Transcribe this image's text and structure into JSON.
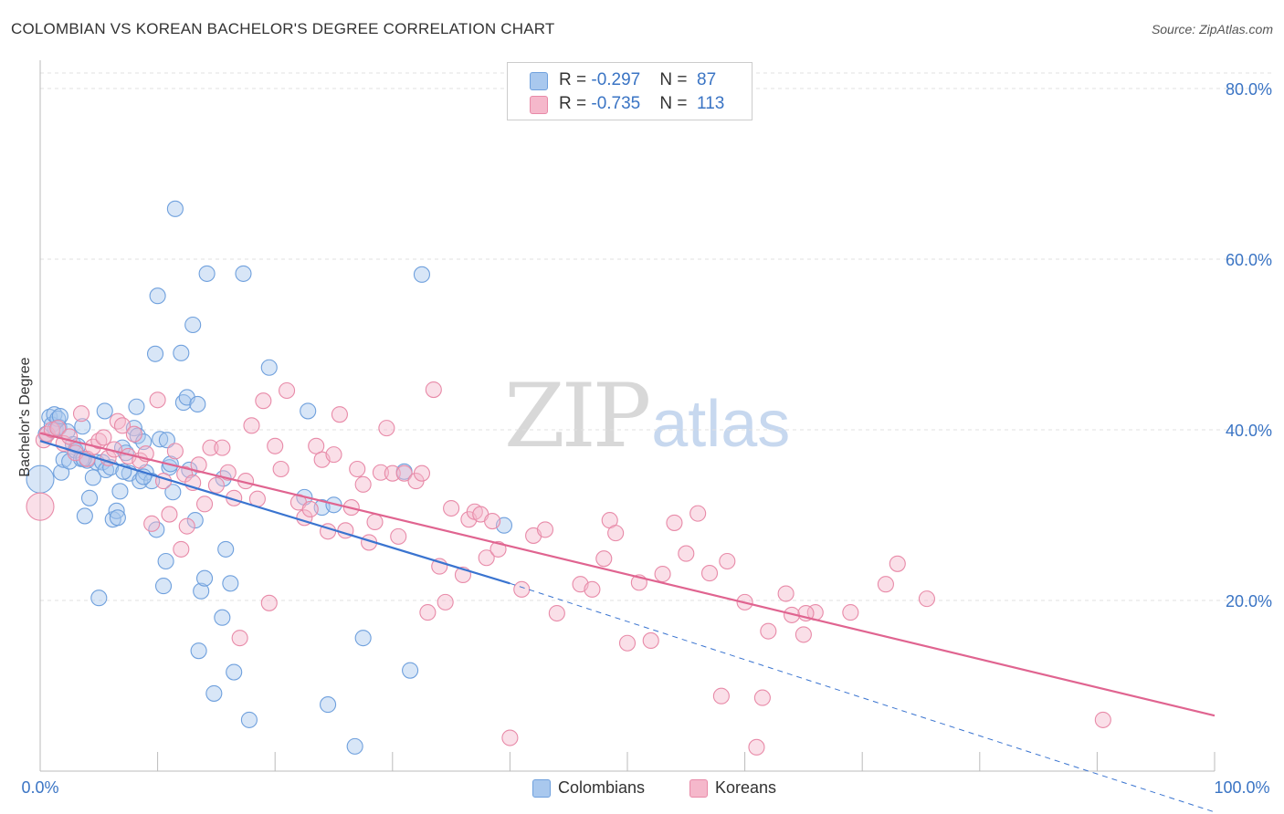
{
  "title": "COLOMBIAN VS KOREAN BACHELOR'S DEGREE CORRELATION CHART",
  "source": "Source: ZipAtlas.com",
  "watermark": {
    "zip": "ZIP",
    "atlas": "atlas"
  },
  "legend": {
    "rows": [
      {
        "r_label": "R = ",
        "r_value": "-0.297",
        "n_label": "N = ",
        "n_value": "87",
        "color": "#a9c8ee"
      },
      {
        "r_label": "R = ",
        "r_value": "-0.735",
        "n_label": "N = ",
        "n_value": "113",
        "color": "#f5b8cb"
      }
    ]
  },
  "bottom_legend": [
    {
      "label": "Colombians",
      "color": "#a9c8ee"
    },
    {
      "label": "Koreans",
      "color": "#f5b8cb"
    }
  ],
  "chart_data": {
    "type": "scatter",
    "title": "COLOMBIAN VS KOREAN BACHELOR'S DEGREE CORRELATION CHART",
    "xlabel": "",
    "ylabel": "Bachelor's Degree",
    "xlim": [
      0,
      100
    ],
    "ylim": [
      0,
      80
    ],
    "x_tick_labels": [
      "0.0%",
      "100.0%"
    ],
    "y_ticks": [
      20,
      40,
      60,
      80
    ],
    "y_tick_labels": [
      "20.0%",
      "40.0%",
      "60.0%",
      "80.0%"
    ],
    "grid": true,
    "legend_position": "top-center",
    "series": [
      {
        "name": "Colombians",
        "color": "#6fa0dd",
        "fill": "#a9c8ee",
        "line_color": "#3a74d0",
        "r": -0.297,
        "n": 87,
        "trend": {
          "x0": 0,
          "y0": 38.7,
          "x1": 40,
          "y1": 22.0,
          "dash_to_x": 100,
          "dash_to_y": -4.8
        },
        "points": [
          [
            0,
            34.2
          ],
          [
            0.5,
            39.5
          ],
          [
            0.8,
            41.5
          ],
          [
            1.0,
            40.6
          ],
          [
            1.2,
            41.8
          ],
          [
            1.3,
            40.1
          ],
          [
            1.5,
            41.3
          ],
          [
            1.6,
            40.3
          ],
          [
            1.8,
            35.0
          ],
          [
            2.0,
            36.5
          ],
          [
            2.3,
            39.8
          ],
          [
            2.5,
            36.3
          ],
          [
            2.8,
            38.3
          ],
          [
            3.0,
            37.6
          ],
          [
            3.2,
            38.1
          ],
          [
            3.5,
            36.6
          ],
          [
            3.6,
            40.4
          ],
          [
            3.8,
            29.9
          ],
          [
            4.0,
            36.4
          ],
          [
            4.2,
            32.0
          ],
          [
            4.5,
            34.4
          ],
          [
            4.8,
            36.2
          ],
          [
            5.0,
            20.3
          ],
          [
            5.3,
            36.2
          ],
          [
            5.5,
            42.2
          ],
          [
            5.6,
            35.3
          ],
          [
            6.0,
            35.6
          ],
          [
            6.2,
            29.5
          ],
          [
            6.5,
            30.5
          ],
          [
            6.6,
            29.7
          ],
          [
            6.8,
            32.8
          ],
          [
            7.0,
            37.9
          ],
          [
            7.3,
            37.3
          ],
          [
            7.6,
            34.9
          ],
          [
            8.0,
            40.2
          ],
          [
            8.2,
            42.7
          ],
          [
            8.3,
            39.3
          ],
          [
            8.5,
            34.0
          ],
          [
            8.8,
            38.6
          ],
          [
            9.0,
            35.0
          ],
          [
            9.5,
            34.0
          ],
          [
            9.8,
            48.9
          ],
          [
            9.9,
            28.3
          ],
          [
            10.0,
            55.7
          ],
          [
            10.2,
            38.9
          ],
          [
            10.5,
            21.7
          ],
          [
            10.7,
            24.6
          ],
          [
            10.8,
            38.8
          ],
          [
            11.0,
            35.6
          ],
          [
            11.3,
            32.7
          ],
          [
            11.5,
            65.9
          ],
          [
            12.0,
            49.0
          ],
          [
            12.2,
            43.2
          ],
          [
            12.5,
            43.8
          ],
          [
            12.7,
            35.3
          ],
          [
            13.0,
            52.3
          ],
          [
            13.2,
            29.4
          ],
          [
            13.4,
            43.0
          ],
          [
            13.5,
            14.1
          ],
          [
            13.7,
            21.1
          ],
          [
            14.0,
            22.6
          ],
          [
            14.2,
            58.3
          ],
          [
            14.8,
            9.1
          ],
          [
            15.5,
            18.0
          ],
          [
            15.6,
            34.3
          ],
          [
            15.8,
            26.0
          ],
          [
            16.2,
            22.0
          ],
          [
            16.5,
            11.6
          ],
          [
            17.3,
            58.3
          ],
          [
            17.8,
            6.0
          ],
          [
            19.5,
            47.3
          ],
          [
            22.5,
            32.1
          ],
          [
            22.8,
            42.2
          ],
          [
            24.0,
            30.9
          ],
          [
            24.5,
            7.8
          ],
          [
            25.0,
            31.2
          ],
          [
            26.8,
            2.9
          ],
          [
            27.5,
            15.6
          ],
          [
            31.0,
            35.1
          ],
          [
            31.5,
            11.8
          ],
          [
            32.5,
            58.2
          ],
          [
            39.5,
            28.8
          ],
          [
            8.8,
            34.5
          ],
          [
            7.1,
            35.1
          ],
          [
            3.7,
            36.6
          ],
          [
            1.7,
            41.6
          ],
          [
            11.1,
            36.0
          ]
        ]
      },
      {
        "name": "Koreans",
        "color": "#e88aa8",
        "fill": "#f5b8cb",
        "line_color": "#e06490",
        "r": -0.735,
        "n": 113,
        "trend": {
          "x0": 0,
          "y0": 39.6,
          "x1": 100,
          "y1": 6.5
        },
        "points": [
          [
            0,
            31.0
          ],
          [
            0.3,
            38.8
          ],
          [
            0.6,
            39.5
          ],
          [
            1.0,
            40.0
          ],
          [
            1.5,
            40.2
          ],
          [
            2.0,
            38.4
          ],
          [
            2.5,
            39.2
          ],
          [
            3.0,
            37.3
          ],
          [
            3.5,
            41.9
          ],
          [
            4.0,
            36.6
          ],
          [
            4.5,
            38.0
          ],
          [
            5.0,
            38.7
          ],
          [
            5.4,
            39.1
          ],
          [
            5.8,
            36.7
          ],
          [
            6.3,
            37.7
          ],
          [
            6.6,
            41.0
          ],
          [
            7.0,
            40.5
          ],
          [
            7.5,
            36.9
          ],
          [
            8.0,
            39.5
          ],
          [
            8.5,
            36.4
          ],
          [
            9.0,
            37.2
          ],
          [
            9.5,
            29.0
          ],
          [
            10.0,
            43.5
          ],
          [
            10.5,
            34.0
          ],
          [
            11.0,
            30.1
          ],
          [
            11.5,
            37.5
          ],
          [
            12.0,
            26.0
          ],
          [
            12.3,
            34.8
          ],
          [
            12.5,
            28.7
          ],
          [
            13.0,
            33.8
          ],
          [
            13.5,
            35.9
          ],
          [
            14.0,
            31.3
          ],
          [
            14.5,
            37.9
          ],
          [
            15.0,
            33.5
          ],
          [
            15.5,
            37.9
          ],
          [
            16.0,
            35.0
          ],
          [
            16.5,
            32.0
          ],
          [
            17.0,
            15.6
          ],
          [
            17.5,
            34.0
          ],
          [
            18.0,
            40.5
          ],
          [
            18.5,
            31.9
          ],
          [
            19.0,
            43.4
          ],
          [
            19.5,
            19.7
          ],
          [
            20.0,
            38.1
          ],
          [
            20.5,
            35.4
          ],
          [
            21.0,
            44.6
          ],
          [
            22.0,
            31.5
          ],
          [
            22.5,
            29.7
          ],
          [
            23.0,
            30.7
          ],
          [
            23.5,
            38.1
          ],
          [
            24.0,
            36.5
          ],
          [
            24.5,
            28.1
          ],
          [
            25.0,
            37.1
          ],
          [
            25.5,
            41.8
          ],
          [
            26.0,
            28.2
          ],
          [
            26.5,
            30.9
          ],
          [
            27.0,
            35.4
          ],
          [
            27.5,
            33.6
          ],
          [
            28.0,
            26.8
          ],
          [
            28.5,
            29.2
          ],
          [
            29.0,
            35.0
          ],
          [
            29.5,
            40.2
          ],
          [
            30.0,
            34.9
          ],
          [
            30.5,
            27.5
          ],
          [
            31.0,
            34.9
          ],
          [
            32.0,
            34.0
          ],
          [
            32.5,
            34.9
          ],
          [
            33.0,
            18.6
          ],
          [
            33.5,
            44.7
          ],
          [
            34.0,
            24.0
          ],
          [
            34.5,
            19.8
          ],
          [
            35.0,
            30.8
          ],
          [
            36.0,
            23.0
          ],
          [
            36.5,
            29.5
          ],
          [
            37.0,
            30.4
          ],
          [
            37.5,
            30.1
          ],
          [
            38.0,
            25.0
          ],
          [
            38.5,
            29.3
          ],
          [
            39.0,
            26.0
          ],
          [
            40.0,
            3.9
          ],
          [
            41.0,
            21.3
          ],
          [
            42.0,
            27.6
          ],
          [
            43.0,
            28.3
          ],
          [
            44.0,
            18.5
          ],
          [
            46.0,
            21.9
          ],
          [
            47.0,
            21.3
          ],
          [
            48.0,
            24.9
          ],
          [
            48.5,
            29.4
          ],
          [
            49.0,
            27.9
          ],
          [
            50.0,
            15.0
          ],
          [
            51.0,
            22.1
          ],
          [
            52.0,
            15.3
          ],
          [
            53.0,
            23.1
          ],
          [
            54.0,
            29.1
          ],
          [
            55.0,
            25.5
          ],
          [
            56.0,
            30.2
          ],
          [
            57.0,
            23.2
          ],
          [
            58.0,
            8.8
          ],
          [
            58.5,
            24.6
          ],
          [
            60.0,
            19.8
          ],
          [
            61.0,
            2.8
          ],
          [
            61.5,
            8.6
          ],
          [
            62.0,
            16.4
          ],
          [
            63.5,
            20.8
          ],
          [
            64.0,
            18.3
          ],
          [
            65.0,
            16.0
          ],
          [
            66.0,
            18.6
          ],
          [
            69.0,
            18.6
          ],
          [
            72.0,
            21.9
          ],
          [
            73.0,
            24.3
          ],
          [
            75.5,
            20.2
          ],
          [
            90.5,
            6.0
          ],
          [
            65.2,
            18.5
          ]
        ]
      }
    ]
  }
}
